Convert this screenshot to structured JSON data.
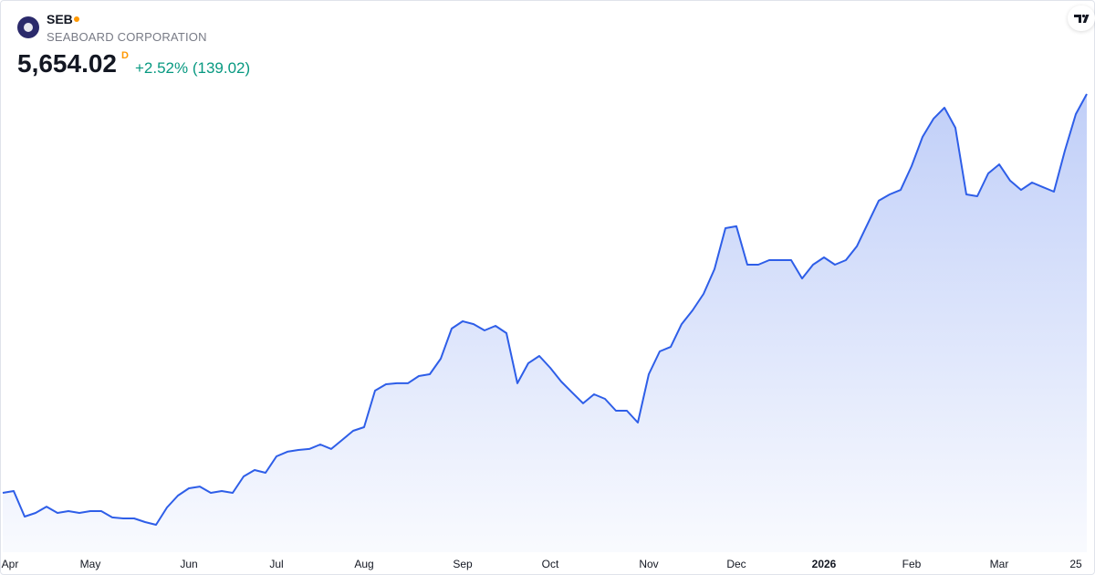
{
  "header": {
    "symbol": "SEB",
    "company": "SEABOARD CORPORATION",
    "price": "5,654.02",
    "interval": "D",
    "change": "+2.52% (139.02)"
  },
  "chart_data": {
    "type": "area",
    "line_color": "#2e5ee8",
    "categories": [
      "Apr",
      null,
      null,
      null,
      null,
      null,
      null,
      null,
      "May",
      null,
      null,
      null,
      null,
      null,
      null,
      null,
      null,
      "Jun",
      null,
      null,
      null,
      null,
      null,
      null,
      null,
      "Jul",
      null,
      null,
      null,
      null,
      null,
      null,
      null,
      "Aug",
      null,
      null,
      null,
      null,
      null,
      null,
      null,
      null,
      "Sep",
      null,
      null,
      null,
      null,
      null,
      null,
      null,
      "Oct",
      null,
      null,
      null,
      null,
      null,
      null,
      null,
      null,
      "Nov",
      null,
      null,
      null,
      null,
      null,
      null,
      null,
      "Dec",
      null,
      null,
      null,
      null,
      null,
      null,
      null,
      "2026",
      null,
      null,
      null,
      null,
      null,
      null,
      null,
      "Feb",
      null,
      null,
      null,
      null,
      null,
      null,
      null,
      "Mar",
      null,
      null,
      null,
      null,
      null,
      null,
      "25",
      null
    ],
    "series": [
      {
        "name": "SEB",
        "color": "#2e5ee8",
        "values": [
          2455,
          2470,
          2265,
          2294,
          2345,
          2294,
          2309,
          2294,
          2309,
          2309,
          2258,
          2250,
          2250,
          2221,
          2199,
          2338,
          2433,
          2492,
          2506,
          2455,
          2470,
          2455,
          2587,
          2638,
          2616,
          2748,
          2785,
          2799,
          2807,
          2843,
          2807,
          2880,
          2953,
          2982,
          3275,
          3326,
          3334,
          3334,
          3392,
          3407,
          3531,
          3773,
          3831,
          3809,
          3758,
          3795,
          3736,
          3334,
          3495,
          3553,
          3458,
          3348,
          3260,
          3173,
          3246,
          3209,
          3114,
          3114,
          3019,
          3407,
          3590,
          3626,
          3809,
          3919,
          4051,
          4249,
          4578,
          4593,
          4285,
          4285,
          4322,
          4322,
          4322,
          4175,
          4285,
          4344,
          4285,
          4322,
          4432,
          4615,
          4798,
          4849,
          4885,
          5076,
          5310,
          5456,
          5544,
          5383,
          4849,
          4834,
          5017,
          5090,
          4959,
          4885,
          4944,
          4907,
          4871,
          5200,
          5493,
          5654.02
        ]
      }
    ]
  }
}
